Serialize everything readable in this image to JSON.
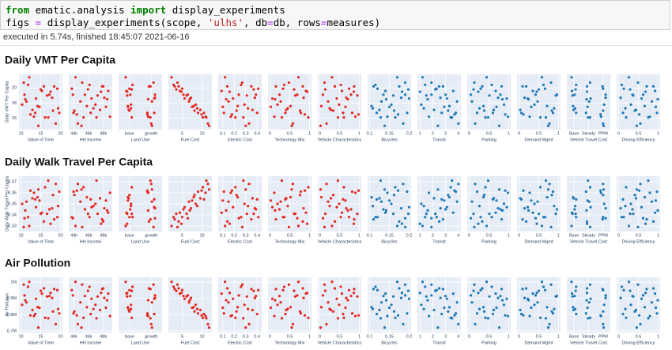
{
  "code": [
    [
      {
        "text": "from",
        "color": "#008000",
        "bold": true
      },
      {
        "text": " ematic.analysis ",
        "color": "#000000",
        "bold": false
      },
      {
        "text": "import",
        "color": "#008000",
        "bold": true
      },
      {
        "text": " display_experiments",
        "color": "#000000",
        "bold": false
      }
    ],
    [
      {
        "text": "figs ",
        "color": "#000000",
        "bold": false
      },
      {
        "text": "=",
        "color": "#aa22ff",
        "bold": false
      },
      {
        "text": " display_experiments(scope, ",
        "color": "#000000",
        "bold": false
      },
      {
        "text": "'ulhs'",
        "color": "#ba2121",
        "bold": false
      },
      {
        "text": ", db",
        "color": "#000000",
        "bold": false
      },
      {
        "text": "=",
        "color": "#aa22ff",
        "bold": false
      },
      {
        "text": "db, rows",
        "color": "#000000",
        "bold": false
      },
      {
        "text": "=",
        "color": "#aa22ff",
        "bold": false
      },
      {
        "text": "measures)",
        "color": "#000000",
        "bold": false
      }
    ]
  ],
  "status": "executed in 5.74s, finished 18:45:07 2021-06-16",
  "chart_data": {
    "type": "scatter-matrix",
    "grid": true,
    "columns": [
      {
        "label": "Value of Time",
        "color": "#e3261f",
        "xlim": [
          9.5,
          20.5
        ],
        "xticks": [
          10,
          15,
          20
        ],
        "x": [
          12.1,
          18.4,
          10.7,
          15.3,
          19.2,
          13.8,
          16.6,
          11.4,
          17.9,
          14.2,
          10.3,
          19.7,
          12.9,
          16.1,
          13.3,
          18.8,
          11.8,
          15.8,
          17.2,
          10.9,
          14.7,
          19.4,
          12.4,
          16.9,
          15.0,
          11.1,
          18.1,
          13.6,
          17.5,
          14.4
        ]
      },
      {
        "label": "HH Income",
        "color": "#e3261f",
        "xlim": [
          43300,
          49200
        ],
        "xticks": [
          {
            "value": 44000,
            "label": "44k"
          },
          {
            "value": 46000,
            "label": "46k"
          },
          {
            "value": 48000,
            "label": "48k"
          }
        ],
        "x": [
          44210,
          47830,
          45120,
          48650,
          43720,
          46390,
          47210,
          44880,
          48120,
          45760,
          46920,
          43950,
          47540,
          45300,
          48890,
          44530,
          46110,
          47970,
          45490,
          43860,
          48340,
          46640,
          44390,
          47060,
          45910,
          48510,
          44060,
          46270,
          47680,
          45020
        ]
      },
      {
        "label": "Land Use",
        "color": "#e3261f",
        "categories": [
          "base",
          "growth"
        ],
        "x": [
          "base",
          "growth",
          "growth",
          "base",
          "base",
          "growth",
          "base",
          "growth",
          "growth",
          "base",
          "base",
          "growth",
          "base",
          "base",
          "growth",
          "growth",
          "base",
          "growth",
          "base",
          "growth",
          "base",
          "base",
          "growth",
          "growth",
          "base",
          "growth",
          "base",
          "growth",
          "base",
          "growth"
        ]
      },
      {
        "label": "Fuel Cost",
        "color": "#e3261f",
        "xlim": [
          1.5,
          12.5
        ],
        "xticks": [
          5,
          10
        ],
        "x": [
          2.3,
          3.1,
          3.8,
          4.4,
          5.0,
          5.6,
          6.1,
          6.7,
          7.2,
          7.9,
          8.4,
          9.0,
          9.6,
          10.2,
          10.9,
          11.5,
          2.8,
          4.1,
          5.3,
          6.4,
          7.5,
          8.8,
          9.9,
          11.1,
          3.5,
          6.9,
          8.1,
          10.5,
          4.8,
          11.8
        ]
      },
      {
        "label": "Electric Cost",
        "color": "#e3261f",
        "xlim": [
          0.06,
          0.44
        ],
        "xticks": [
          0.1,
          0.2,
          0.3,
          0.4
        ],
        "x": [
          0.12,
          0.35,
          0.27,
          0.09,
          0.41,
          0.19,
          0.31,
          0.15,
          0.38,
          0.23,
          0.29,
          0.11,
          0.36,
          0.21,
          0.17,
          0.33,
          0.26,
          0.14,
          0.39,
          0.24,
          0.1,
          0.32,
          0.18,
          0.28,
          0.37,
          0.13,
          0.22,
          0.4,
          0.16,
          0.3
        ]
      },
      {
        "label": "Technology Mix",
        "color": "#e3261f",
        "xlim": [
          -0.05,
          1.05
        ],
        "xticks": [
          0,
          0.5,
          1
        ],
        "x": [
          0.72,
          0.15,
          0.48,
          0.91,
          0.33,
          0.06,
          0.64,
          0.27,
          0.85,
          0.52,
          0.19,
          0.78,
          0.41,
          0.97,
          0.11,
          0.58,
          0.36,
          0.83,
          0.24,
          0.69,
          0.02,
          0.45,
          0.88,
          0.3,
          0.61,
          0.13,
          0.76,
          0.39,
          0.94,
          0.55
        ]
      },
      {
        "label": "Vehicle Characteristics",
        "color": "#e3261f",
        "xlim": [
          -0.05,
          1.05
        ],
        "xticks": [
          0,
          0.5,
          1
        ],
        "x": [
          0.31,
          0.87,
          0.12,
          0.56,
          0.74,
          0.43,
          0.95,
          0.21,
          0.67,
          0.04,
          0.49,
          0.82,
          0.28,
          0.61,
          0.9,
          0.17,
          0.53,
          0.38,
          0.79,
          0.08,
          0.65,
          0.25,
          0.98,
          0.46,
          0.14,
          0.71,
          0.34,
          0.59,
          0.86,
          0.02
        ]
      },
      {
        "label": "Bicycles",
        "color": "#1f77b4",
        "xlim": [
          0.095,
          0.205
        ],
        "xticks": [
          0.1,
          0.15,
          0.2
        ],
        "x": [
          0.17,
          0.11,
          0.19,
          0.14,
          0.12,
          0.2,
          0.16,
          0.13,
          0.18,
          0.105,
          0.155,
          0.195,
          0.125,
          0.165,
          0.145,
          0.185,
          0.115,
          0.175,
          0.135,
          0.19,
          0.15,
          0.108,
          0.172,
          0.128,
          0.198,
          0.142,
          0.162,
          0.118,
          0.182,
          0.138
        ]
      },
      {
        "label": "Transit",
        "color": "#1f77b4",
        "xlim": [
          0.8,
          4.2
        ],
        "xticks": [
          1,
          2,
          3,
          4
        ],
        "x": [
          1.2,
          2.8,
          1.9,
          3.6,
          2.3,
          3.1,
          1.5,
          3.9,
          2.6,
          3.3,
          1.1,
          3.8,
          2.1,
          3.4,
          1.7,
          4.0,
          1.4,
          2.5,
          3.0,
          1.9,
          2.9,
          1.3,
          3.7,
          3.5,
          2.2,
          1.6,
          3.2,
          2.7,
          1.0,
          2.4
        ]
      },
      {
        "label": "Parking",
        "color": "#1f77b4",
        "xlim": [
          -0.05,
          1.05
        ],
        "xticks": [
          0,
          0.5,
          1
        ],
        "x": [
          0.44,
          0.82,
          0.13,
          0.67,
          0.29,
          0.95,
          0.51,
          0.07,
          0.73,
          0.36,
          0.88,
          0.2,
          0.62,
          0.41,
          0.98,
          0.15,
          0.57,
          0.33,
          0.79,
          0.04,
          0.69,
          0.26,
          0.91,
          0.48,
          0.11,
          0.84,
          0.38,
          0.6,
          0.23,
          0.76
        ]
      },
      {
        "label": "Demand Mgmt",
        "color": "#1f77b4",
        "xlim": [
          -0.05,
          1.05
        ],
        "xticks": [
          0,
          0.5,
          1
        ],
        "x": [
          0.58,
          0.09,
          0.81,
          0.35,
          0.66,
          0.22,
          0.93,
          0.47,
          0.14,
          0.71,
          0.39,
          0.86,
          0.03,
          0.54,
          0.27,
          0.77,
          0.62,
          0.18,
          0.96,
          0.42,
          0.31,
          0.89,
          0.11,
          0.68,
          0.5,
          0.24,
          0.83,
          0.06,
          0.45,
          0.74
        ]
      },
      {
        "label": "Vehicle Travel Cost",
        "color": "#1f77b4",
        "categories": [
          "Base",
          "Steady",
          "PPM"
        ],
        "x": [
          "Base",
          "PPM",
          "Steady",
          "Base",
          "PPM",
          "Steady",
          "Base",
          "Steady",
          "PPM",
          "Base",
          "PPM",
          "Steady",
          "Base",
          "Steady",
          "PPM",
          "PPM",
          "Base",
          "Steady",
          "Base",
          "PPM",
          "Steady",
          "Base",
          "PPM",
          "Steady",
          "Base",
          "Steady",
          "PPM",
          "Base",
          "Steady",
          "PPM"
        ]
      },
      {
        "label": "Driving Efficiency",
        "color": "#1f77b4",
        "xlim": [
          -0.05,
          1.05
        ],
        "xticks": [
          0,
          0.5,
          1
        ],
        "x": [
          0.26,
          0.71,
          0.49,
          0.92,
          0.13,
          0.58,
          0.37,
          0.84,
          0.05,
          0.66,
          0.31,
          0.97,
          0.44,
          0.19,
          0.79,
          0.55,
          0.08,
          0.88,
          0.35,
          0.62,
          0.94,
          0.17,
          0.52,
          0.75,
          0.29,
          0.99,
          0.41,
          0.11,
          0.68,
          0.46
        ]
      }
    ],
    "rows": [
      {
        "title": "Daily VMT Per Capita",
        "ylabel": "Daily VMT Per Capita",
        "ylim": [
          14.5,
          21.8
        ],
        "yticks": [
          16,
          18,
          20
        ],
        "values": [
          21.4,
          20.2,
          20.7,
          19.6,
          19.9,
          18.6,
          19.0,
          18.2,
          18.7,
          17.6,
          17.8,
          16.7,
          17.1,
          16.1,
          16.2,
          15.3,
          20.4,
          20.2,
          19.1,
          19.1,
          17.5,
          17.3,
          16.5,
          16.1,
          19.8,
          18.5,
          17.0,
          16.7,
          19.5,
          15.0
        ]
      },
      {
        "title": "Daily Walk Travel Per Capita",
        "ylabel": "Daily Walk Travel Per Capita",
        "ylim": [
          0.325,
          0.375
        ],
        "yticks": [
          0.33,
          0.34,
          0.35,
          0.36,
          0.37
        ],
        "values": [
          0.33,
          0.336,
          0.329,
          0.342,
          0.338,
          0.347,
          0.341,
          0.352,
          0.346,
          0.356,
          0.35,
          0.361,
          0.355,
          0.365,
          0.36,
          0.368,
          0.338,
          0.334,
          0.345,
          0.337,
          0.353,
          0.348,
          0.362,
          0.371,
          0.341,
          0.344,
          0.358,
          0.354,
          0.332,
          0.363
        ]
      },
      {
        "title": "Air Pollution",
        "ylabel": "Air Pollution",
        "ylim": [
          690000,
          1030000
        ],
        "yticks": [
          {
            "value": 700000,
            "label": "0.7M"
          },
          {
            "value": 800000,
            "label": "0.8M"
          },
          {
            "value": 900000,
            "label": "0.9M"
          },
          {
            "value": 1000000,
            "label": "1M"
          }
        ],
        "values": [
          1002000,
          958000,
          985000,
          930000,
          951000,
          898000,
          912000,
          876000,
          903000,
          846000,
          861000,
          808000,
          829000,
          781000,
          792000,
          742000,
          972000,
          962000,
          915000,
          919000,
          843000,
          835000,
          796000,
          778000,
          947000,
          889000,
          820000,
          804000,
          934000,
          721000
        ]
      }
    ]
  }
}
